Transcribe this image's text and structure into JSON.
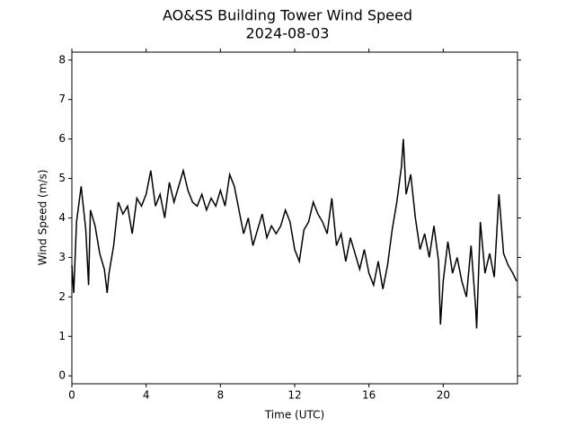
{
  "chart_data": {
    "type": "line",
    "title": "AO&SS Building Tower Wind Speed",
    "subtitle": "2024-08-03",
    "x_label": "Time (UTC)",
    "y_label": "Wind Speed (m/s)",
    "xlim": [
      0,
      24
    ],
    "xticks": [
      0,
      4,
      8,
      12,
      16,
      20
    ],
    "ylim": [
      -0.2,
      8.2
    ],
    "yticks": [
      0,
      1,
      2,
      3,
      4,
      5,
      6,
      7,
      8
    ],
    "series": [
      {
        "color": "#000000",
        "x": [
          0.0,
          0.1,
          0.25,
          0.5,
          0.75,
          0.9,
          1.0,
          1.25,
          1.5,
          1.75,
          1.9,
          2.0,
          2.25,
          2.5,
          2.75,
          3.0,
          3.25,
          3.5,
          3.75,
          4.0,
          4.25,
          4.5,
          4.75,
          5.0,
          5.25,
          5.5,
          5.75,
          6.0,
          6.25,
          6.5,
          6.75,
          7.0,
          7.25,
          7.5,
          7.75,
          8.0,
          8.25,
          8.5,
          8.75,
          9.0,
          9.25,
          9.5,
          9.75,
          10.0,
          10.25,
          10.5,
          10.75,
          11.0,
          11.25,
          11.5,
          11.75,
          12.0,
          12.25,
          12.5,
          12.75,
          13.0,
          13.25,
          13.5,
          13.75,
          14.0,
          14.25,
          14.5,
          14.75,
          15.0,
          15.25,
          15.5,
          15.75,
          16.0,
          16.25,
          16.5,
          16.75,
          17.0,
          17.25,
          17.5,
          17.75,
          17.85,
          18.0,
          18.25,
          18.5,
          18.75,
          19.0,
          19.25,
          19.5,
          19.75,
          19.85,
          20.0,
          20.25,
          20.5,
          20.75,
          21.0,
          21.25,
          21.5,
          21.75,
          21.8,
          22.0,
          22.25,
          22.5,
          22.75,
          23.0,
          23.25,
          23.5,
          23.75,
          23.95
        ],
        "values": [
          2.8,
          2.1,
          3.9,
          4.8,
          3.7,
          2.3,
          4.2,
          3.8,
          3.1,
          2.7,
          2.1,
          2.6,
          3.3,
          4.4,
          4.1,
          4.3,
          3.6,
          4.5,
          4.3,
          4.6,
          5.2,
          4.3,
          4.6,
          4.0,
          4.9,
          4.4,
          4.8,
          5.2,
          4.7,
          4.4,
          4.3,
          4.6,
          4.2,
          4.5,
          4.3,
          4.7,
          4.3,
          5.1,
          4.8,
          4.2,
          3.6,
          4.0,
          3.3,
          3.7,
          4.1,
          3.5,
          3.8,
          3.6,
          3.8,
          4.2,
          3.9,
          3.2,
          2.9,
          3.7,
          3.9,
          4.4,
          4.1,
          3.9,
          3.6,
          4.5,
          3.3,
          3.6,
          2.9,
          3.5,
          3.1,
          2.7,
          3.2,
          2.6,
          2.3,
          2.9,
          2.2,
          2.8,
          3.7,
          4.4,
          5.3,
          6.0,
          4.6,
          5.1,
          4.0,
          3.2,
          3.6,
          3.0,
          3.8,
          2.9,
          1.3,
          2.4,
          3.4,
          2.6,
          3.0,
          2.4,
          2.0,
          3.3,
          1.7,
          1.2,
          3.9,
          2.6,
          3.1,
          2.5,
          4.6,
          3.1,
          2.8,
          2.6,
          2.4
        ]
      }
    ]
  }
}
